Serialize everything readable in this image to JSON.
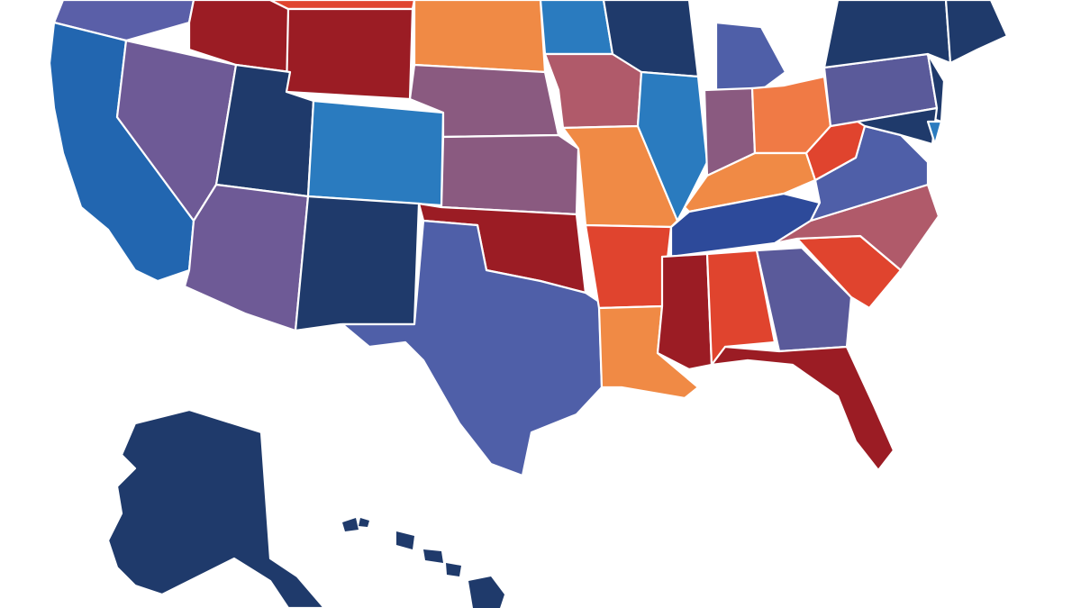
{
  "map": {
    "type": "choropleth",
    "background": "#ffffff",
    "border_color": "#ffffff",
    "fills": {
      "WA": "#5a5fa8",
      "OR": "#5a5fa8",
      "CA": "#2266b0",
      "NV": "#6e5a96",
      "ID": "#9b1c24",
      "MT": "#e0442e",
      "WY": "#9b1c24",
      "UT": "#1f3a6b",
      "CO": "#2a7bbf",
      "AZ": "#6e5a96",
      "NM": "#1f3a6b",
      "ND": "#f08a45",
      "SD": "#f08a45",
      "NE": "#8a5a80",
      "KS": "#8a5a80",
      "OK": "#9b1c24",
      "TX": "#4f5fa8",
      "MN": "#2a7bbf",
      "IA": "#b05a6a",
      "MO": "#f08a45",
      "AR": "#e0442e",
      "LA": "#f08a45",
      "WI": "#1f3a6b",
      "IL": "#2a7bbf",
      "MI": "#4f5fa8",
      "IN": "#8a5a80",
      "OH": "#f07a45",
      "KY": "#f08a45",
      "TN": "#2d4a9a",
      "MS": "#9b1c24",
      "AL": "#e0442e",
      "GA": "#5a5a9a",
      "FL": "#9b1c24",
      "SC": "#e0442e",
      "NC": "#b05a6a",
      "VA": "#4f5fa8",
      "WV": "#e0442e",
      "PA": "#5a5a9a",
      "NY": "#1f3a6b",
      "NJ": "#1f3a6b",
      "MD": "#1f3a6b",
      "DE": "#2a7bbf",
      "NE_STATES": "#1f3a6b",
      "AK": "#1f3a6b",
      "HI": "#1f3a6b"
    }
  }
}
